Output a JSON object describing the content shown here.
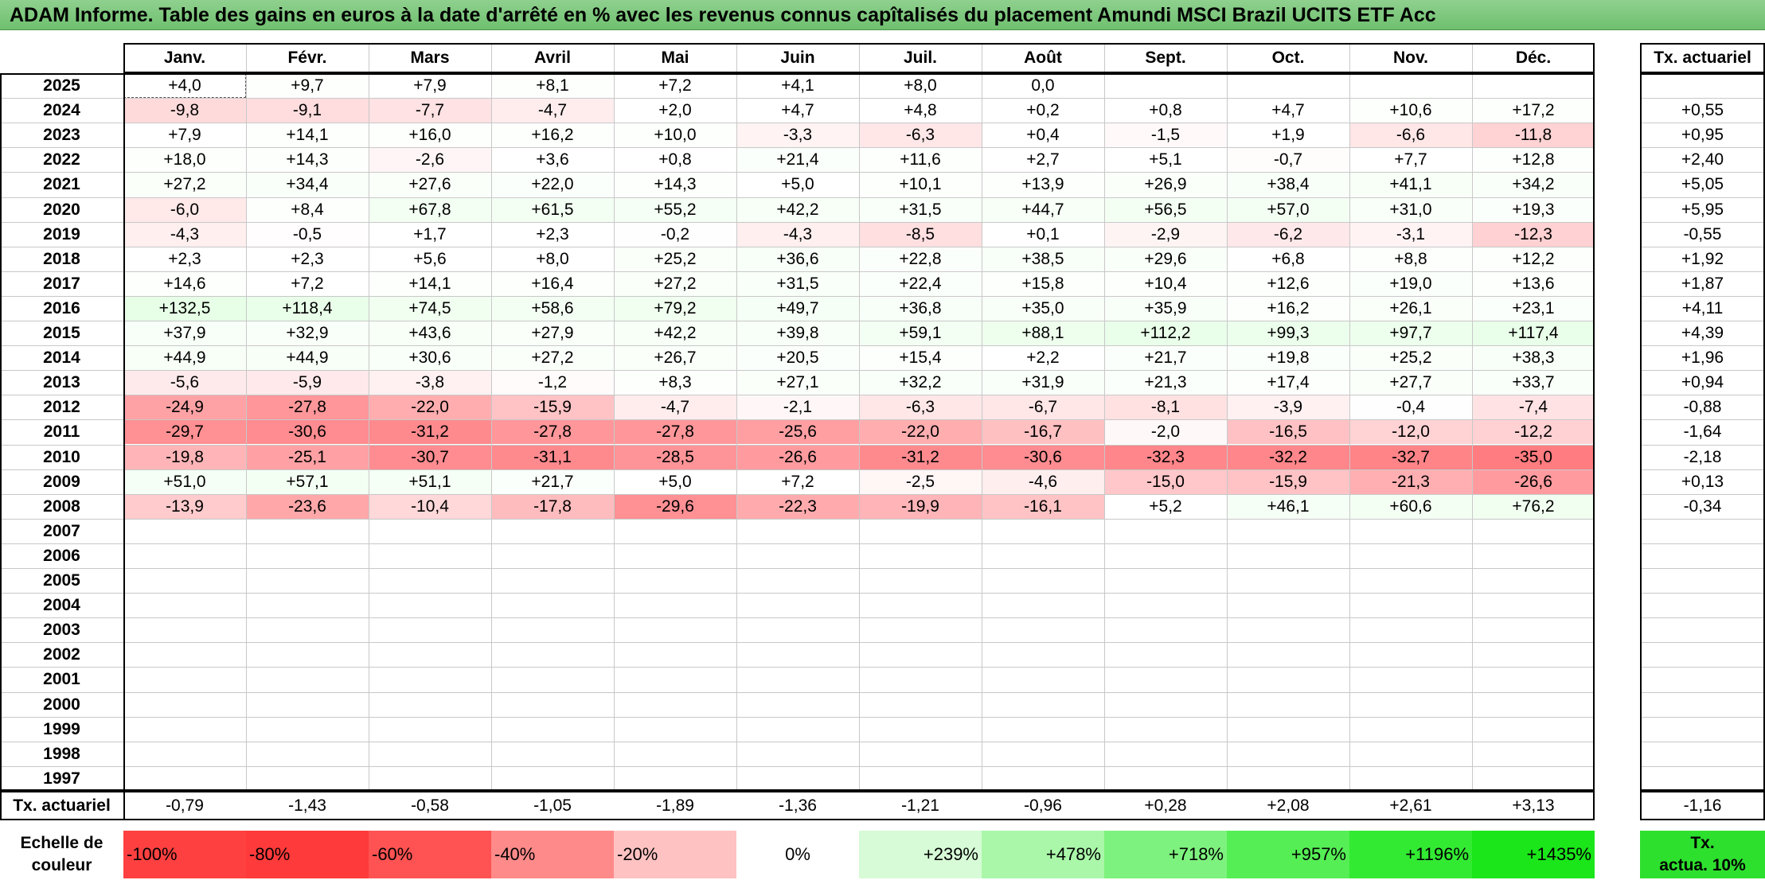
{
  "title": "ADAM Informe. Table des gains en euros à la date d'arrêté en % avec les revenus connus capîtalisés du placement Amundi MSCI Brazil UCITS ETF Acc",
  "months": [
    "Janv.",
    "Févr.",
    "Mars",
    "Avril",
    "Mai",
    "Juin",
    "Juil.",
    "Août",
    "Sept.",
    "Oct.",
    "Nov.",
    "Déc."
  ],
  "tx_header": "Tx. actuariel",
  "rows": [
    {
      "year": "2025",
      "values": [
        "+4,0",
        "+9,7",
        "+7,9",
        "+8,1",
        "+7,2",
        "+4,1",
        "+8,0",
        "0,0",
        "",
        "",
        "",
        ""
      ],
      "tx": ""
    },
    {
      "year": "2024",
      "values": [
        "-9,8",
        "-9,1",
        "-7,7",
        "-4,7",
        "+2,0",
        "+4,7",
        "+4,8",
        "+0,2",
        "+0,8",
        "+4,7",
        "+10,6",
        "+17,2"
      ],
      "tx": "+0,55"
    },
    {
      "year": "2023",
      "values": [
        "+7,9",
        "+14,1",
        "+16,0",
        "+16,2",
        "+10,0",
        "-3,3",
        "-6,3",
        "+0,4",
        "-1,5",
        "+1,9",
        "-6,6",
        "-11,8"
      ],
      "tx": "+0,95"
    },
    {
      "year": "2022",
      "values": [
        "+18,0",
        "+14,3",
        "-2,6",
        "+3,6",
        "+0,8",
        "+21,4",
        "+11,6",
        "+2,7",
        "+5,1",
        "-0,7",
        "+7,7",
        "+12,8"
      ],
      "tx": "+2,40"
    },
    {
      "year": "2021",
      "values": [
        "+27,2",
        "+34,4",
        "+27,6",
        "+22,0",
        "+14,3",
        "+5,0",
        "+10,1",
        "+13,9",
        "+26,9",
        "+38,4",
        "+41,1",
        "+34,2"
      ],
      "tx": "+5,05"
    },
    {
      "year": "2020",
      "values": [
        "-6,0",
        "+8,4",
        "+67,8",
        "+61,5",
        "+55,2",
        "+42,2",
        "+31,5",
        "+44,7",
        "+56,5",
        "+57,0",
        "+31,0",
        "+19,3"
      ],
      "tx": "+5,95"
    },
    {
      "year": "2019",
      "values": [
        "-4,3",
        "-0,5",
        "+1,7",
        "+2,3",
        "-0,2",
        "-4,3",
        "-8,5",
        "+0,1",
        "-2,9",
        "-6,2",
        "-3,1",
        "-12,3"
      ],
      "tx": "-0,55"
    },
    {
      "year": "2018",
      "values": [
        "+2,3",
        "+2,3",
        "+5,6",
        "+8,0",
        "+25,2",
        "+36,6",
        "+22,8",
        "+38,5",
        "+29,6",
        "+6,8",
        "+8,8",
        "+12,2"
      ],
      "tx": "+1,92"
    },
    {
      "year": "2017",
      "values": [
        "+14,6",
        "+7,2",
        "+14,1",
        "+16,4",
        "+27,2",
        "+31,5",
        "+22,4",
        "+15,8",
        "+10,4",
        "+12,6",
        "+19,0",
        "+13,6"
      ],
      "tx": "+1,87"
    },
    {
      "year": "2016",
      "values": [
        "+132,5",
        "+118,4",
        "+74,5",
        "+58,6",
        "+79,2",
        "+49,7",
        "+36,8",
        "+35,0",
        "+35,9",
        "+16,2",
        "+26,1",
        "+23,1"
      ],
      "tx": "+4,11"
    },
    {
      "year": "2015",
      "values": [
        "+37,9",
        "+32,9",
        "+43,6",
        "+27,9",
        "+42,2",
        "+39,8",
        "+59,1",
        "+88,1",
        "+112,2",
        "+99,3",
        "+97,7",
        "+117,4"
      ],
      "tx": "+4,39"
    },
    {
      "year": "2014",
      "values": [
        "+44,9",
        "+44,9",
        "+30,6",
        "+27,2",
        "+26,7",
        "+20,5",
        "+15,4",
        "+2,2",
        "+21,7",
        "+19,8",
        "+25,2",
        "+38,3"
      ],
      "tx": "+1,96"
    },
    {
      "year": "2013",
      "values": [
        "-5,6",
        "-5,9",
        "-3,8",
        "-1,2",
        "+8,3",
        "+27,1",
        "+32,2",
        "+31,9",
        "+21,3",
        "+17,4",
        "+27,7",
        "+33,7"
      ],
      "tx": "+0,94"
    },
    {
      "year": "2012",
      "values": [
        "-24,9",
        "-27,8",
        "-22,0",
        "-15,9",
        "-4,7",
        "-2,1",
        "-6,3",
        "-6,7",
        "-8,1",
        "-3,9",
        "-0,4",
        "-7,4"
      ],
      "tx": "-0,88"
    },
    {
      "year": "2011",
      "values": [
        "-29,7",
        "-30,6",
        "-31,2",
        "-27,8",
        "-27,8",
        "-25,6",
        "-22,0",
        "-16,7",
        "-2,0",
        "-16,5",
        "-12,0",
        "-12,2"
      ],
      "tx": "-1,64"
    },
    {
      "year": "2010",
      "values": [
        "-19,8",
        "-25,1",
        "-30,7",
        "-31,1",
        "-28,5",
        "-26,6",
        "-31,2",
        "-30,6",
        "-32,3",
        "-32,2",
        "-32,7",
        "-35,0"
      ],
      "tx": "-2,18"
    },
    {
      "year": "2009",
      "values": [
        "+51,0",
        "+57,1",
        "+51,1",
        "+21,7",
        "+5,0",
        "+7,2",
        "-2,5",
        "-4,6",
        "-15,0",
        "-15,9",
        "-21,3",
        "-26,6"
      ],
      "tx": "+0,13"
    },
    {
      "year": "2008",
      "values": [
        "-13,9",
        "-23,6",
        "-10,4",
        "-17,8",
        "-29,6",
        "-22,3",
        "-19,9",
        "-16,1",
        "+5,2",
        "+46,1",
        "+60,6",
        "+76,2"
      ],
      "tx": "-0,34"
    },
    {
      "year": "2007",
      "values": [
        "",
        "",
        "",
        "",
        "",
        "",
        "",
        "",
        "",
        "",
        "",
        ""
      ],
      "tx": ""
    },
    {
      "year": "2006",
      "values": [
        "",
        "",
        "",
        "",
        "",
        "",
        "",
        "",
        "",
        "",
        "",
        ""
      ],
      "tx": ""
    },
    {
      "year": "2005",
      "values": [
        "",
        "",
        "",
        "",
        "",
        "",
        "",
        "",
        "",
        "",
        "",
        ""
      ],
      "tx": ""
    },
    {
      "year": "2004",
      "values": [
        "",
        "",
        "",
        "",
        "",
        "",
        "",
        "",
        "",
        "",
        "",
        ""
      ],
      "tx": ""
    },
    {
      "year": "2003",
      "values": [
        "",
        "",
        "",
        "",
        "",
        "",
        "",
        "",
        "",
        "",
        "",
        ""
      ],
      "tx": ""
    },
    {
      "year": "2002",
      "values": [
        "",
        "",
        "",
        "",
        "",
        "",
        "",
        "",
        "",
        "",
        "",
        ""
      ],
      "tx": ""
    },
    {
      "year": "2001",
      "values": [
        "",
        "",
        "",
        "",
        "",
        "",
        "",
        "",
        "",
        "",
        "",
        ""
      ],
      "tx": ""
    },
    {
      "year": "2000",
      "values": [
        "",
        "",
        "",
        "",
        "",
        "",
        "",
        "",
        "",
        "",
        "",
        ""
      ],
      "tx": ""
    },
    {
      "year": "1999",
      "values": [
        "",
        "",
        "",
        "",
        "",
        "",
        "",
        "",
        "",
        "",
        "",
        ""
      ],
      "tx": ""
    },
    {
      "year": "1998",
      "values": [
        "",
        "",
        "",
        "",
        "",
        "",
        "",
        "",
        "",
        "",
        "",
        ""
      ],
      "tx": ""
    },
    {
      "year": "1997",
      "values": [
        "",
        "",
        "",
        "",
        "",
        "",
        "",
        "",
        "",
        "",
        "",
        ""
      ],
      "tx": ""
    }
  ],
  "summary": {
    "label": "Tx. actuariel",
    "values": [
      "-0,79",
      "-1,43",
      "-0,58",
      "-1,05",
      "-1,89",
      "-1,36",
      "-1,21",
      "-0,96",
      "+0,28",
      "+2,08",
      "+2,61",
      "+3,13"
    ],
    "total": "-1,16"
  },
  "scale": {
    "label_line1": "Echelle de",
    "label_line2": "couleur",
    "steps": [
      {
        "label": "-100%",
        "color": "#ff4040",
        "align": "left"
      },
      {
        "label": "-80%",
        "color": "#ff3a3a",
        "align": "left"
      },
      {
        "label": "-60%",
        "color": "#ff5252",
        "align": "left"
      },
      {
        "label": "-40%",
        "color": "#ff8a8a",
        "align": "left"
      },
      {
        "label": "-20%",
        "color": "#ffc2c2",
        "align": "left"
      },
      {
        "label": "0%",
        "color": "#ffffff",
        "align": "center"
      },
      {
        "label": "+239%",
        "color": "#d6fbd6",
        "align": "right"
      },
      {
        "label": "+478%",
        "color": "#aaf7aa",
        "align": "right"
      },
      {
        "label": "+718%",
        "color": "#7ef27e",
        "align": "right"
      },
      {
        "label": "+957%",
        "color": "#55ee55",
        "align": "right"
      },
      {
        "label": "+1196%",
        "color": "#33ea33",
        "align": "right"
      },
      {
        "label": "+1435%",
        "color": "#1ae61a",
        "align": "right"
      }
    ],
    "tx_line1": "Tx.",
    "tx_line2": "actua. 10%",
    "tx_color": "#2ee02e"
  }
}
